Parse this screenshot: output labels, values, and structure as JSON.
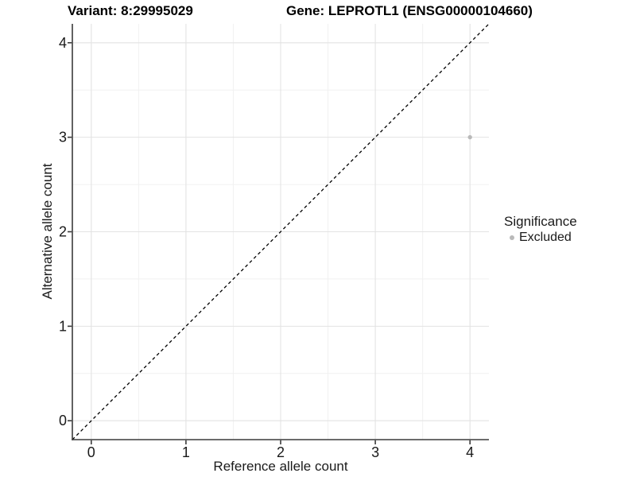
{
  "chart_data": {
    "type": "scatter",
    "titles": {
      "variant": "Variant: 8:29995029",
      "gene": "Gene: LEPROTL1 (ENSG00000104660)"
    },
    "xlabel": "Reference allele count",
    "ylabel": "Alternative allele count",
    "xlim": [
      -0.2,
      4.2
    ],
    "ylim": [
      -0.2,
      4.2
    ],
    "x_ticks": [
      0,
      1,
      2,
      3,
      4
    ],
    "y_ticks": [
      0,
      1,
      2,
      3,
      4
    ],
    "x_minor_ticks": [
      0.5,
      1.5,
      2.5,
      3.5
    ],
    "y_minor_ticks": [
      0.5,
      1.5,
      2.5,
      3.5
    ],
    "grid": true,
    "reference_line": {
      "type": "identity-diagonal",
      "style": "dashed",
      "color": "#000000"
    },
    "series": [
      {
        "name": "Excluded",
        "color": "#b9b9b9",
        "points": [
          {
            "x": 4,
            "y": 3
          }
        ]
      }
    ],
    "legend": {
      "position": "right",
      "title": "Significance",
      "items": [
        {
          "label": "Excluded",
          "color": "#b9b9b9",
          "marker": "dot-icon"
        }
      ]
    },
    "style": {
      "background": "#ffffff",
      "grid_major_color": "#e3e3e3",
      "grid_minor_color": "#f1f1f1",
      "axis_line_color": "#3b3b3b",
      "tick_label_color": "#1a1a1a",
      "point_color": "#b9b9b9"
    }
  }
}
